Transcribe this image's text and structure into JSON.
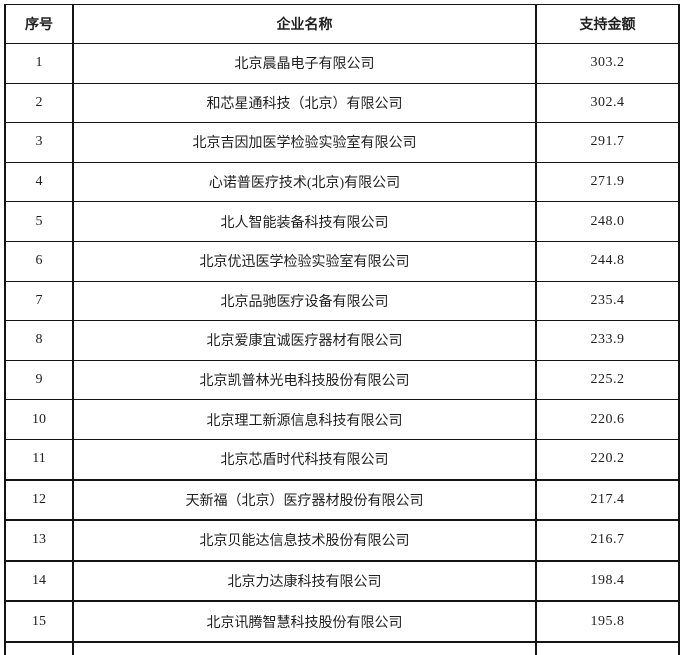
{
  "page": {
    "background": "#ffffff",
    "border_color": "#141414",
    "text_color": "#1f1f1f"
  },
  "table": {
    "headers": {
      "index": "序号",
      "company": "企业名称",
      "amount": "支持金额"
    },
    "rows": [
      {
        "index": "1",
        "company": "北京晨晶电子有限公司",
        "amount": "303.2"
      },
      {
        "index": "2",
        "company": "和芯星通科技（北京）有限公司",
        "amount": "302.4"
      },
      {
        "index": "3",
        "company": "北京吉因加医学检验实验室有限公司",
        "amount": "291.7"
      },
      {
        "index": "4",
        "company": "心诺普医疗技术(北京)有限公司",
        "amount": "271.9"
      },
      {
        "index": "5",
        "company": "北人智能装备科技有限公司",
        "amount": "248.0"
      },
      {
        "index": "6",
        "company": "北京优迅医学检验实验室有限公司",
        "amount": "244.8"
      },
      {
        "index": "7",
        "company": "北京品驰医疗设备有限公司",
        "amount": "235.4"
      },
      {
        "index": "8",
        "company": "北京爱康宜诚医疗器材有限公司",
        "amount": "233.9"
      },
      {
        "index": "9",
        "company": "北京凯普林光电科技股份有限公司",
        "amount": "225.2"
      },
      {
        "index": "10",
        "company": "北京理工新源信息科技有限公司",
        "amount": "220.6"
      },
      {
        "index": "11",
        "company": "北京芯盾时代科技有限公司",
        "amount": "220.2"
      },
      {
        "index": "12",
        "company": "天新福（北京）医疗器材股份有限公司",
        "amount": "217.4"
      },
      {
        "index": "13",
        "company": "北京贝能达信息技术股份有限公司",
        "amount": "216.7"
      },
      {
        "index": "14",
        "company": "北京力达康科技有限公司",
        "amount": "198.4"
      },
      {
        "index": "15",
        "company": "北京讯腾智慧科技股份有限公司",
        "amount": "195.8"
      }
    ]
  }
}
